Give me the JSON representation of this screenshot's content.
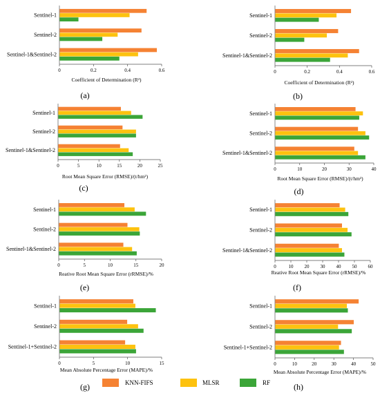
{
  "legend": [
    {
      "label": "KNN-FIFS",
      "color": "#f58233"
    },
    {
      "label": "MLSR",
      "color": "#fdc20f"
    },
    {
      "label": "RF",
      "color": "#3ba538"
    }
  ],
  "chart_data": [
    {
      "id": "a",
      "caption": "(a)",
      "type": "bar",
      "orientation": "horizontal",
      "categories": [
        "Sentinel-1",
        "Sentinel-2",
        "Sentinel-1&Sentinel-2"
      ],
      "series": [
        {
          "name": "KNN-FIFS",
          "values": [
            0.51,
            0.48,
            0.57
          ]
        },
        {
          "name": "MLSR",
          "values": [
            0.41,
            0.34,
            0.46
          ]
        },
        {
          "name": "RF",
          "values": [
            0.11,
            0.25,
            0.35
          ]
        }
      ],
      "xlabel": "Coefficient of Determination (R²)",
      "xlim": [
        0,
        0.6
      ],
      "xticks": [
        "0",
        "0.2",
        "0.4",
        "0.6"
      ],
      "xtick_values": [
        0,
        0.2,
        0.4,
        0.6
      ]
    },
    {
      "id": "b",
      "caption": "(b)",
      "type": "bar",
      "orientation": "horizontal",
      "categories": [
        "Sentinel-1",
        "Sentinel-2",
        "Sentinel-1&Sentinel-2"
      ],
      "series": [
        {
          "name": "KNN-FIFS",
          "values": [
            0.47,
            0.39,
            0.52
          ]
        },
        {
          "name": "MLSR",
          "values": [
            0.38,
            0.32,
            0.45
          ]
        },
        {
          "name": "RF",
          "values": [
            0.27,
            0.18,
            0.34
          ]
        }
      ],
      "xlabel": "Coefficient of Determination (R²)",
      "xlim": [
        0,
        0.6
      ],
      "xticks": [
        "0",
        "0.2",
        "0.4",
        "0.6"
      ],
      "xtick_values": [
        0,
        0.2,
        0.4,
        0.6
      ]
    },
    {
      "id": "c",
      "caption": "(c)",
      "type": "bar",
      "orientation": "horizontal",
      "categories": [
        "Sentinel-1",
        "Sentinel-2",
        "Sentinel-1&Sentinel-2"
      ],
      "series": [
        {
          "name": "KNN-FIFS",
          "values": [
            15.3,
            15.7,
            15.1
          ]
        },
        {
          "name": "MLSR",
          "values": [
            17.8,
            19.0,
            17.2
          ]
        },
        {
          "name": "RF",
          "values": [
            20.6,
            19.0,
            18.2
          ]
        }
      ],
      "xlabel": "Root Mean Square Error (RMSE)/(t/hm²)",
      "xlim": [
        0,
        25
      ],
      "xticks": [
        "0",
        "5",
        "10",
        "15",
        "20",
        "25"
      ],
      "xtick_values": [
        0,
        5,
        10,
        15,
        20,
        25
      ]
    },
    {
      "id": "d",
      "caption": "(d)",
      "type": "bar",
      "orientation": "horizontal",
      "categories": [
        "Sentinel-1",
        "Sentinel-2",
        "Sentinel-1&Sentinel-2"
      ],
      "series": [
        {
          "name": "KNN-FIFS",
          "values": [
            32.5,
            33.5,
            32.0
          ]
        },
        {
          "name": "MLSR",
          "values": [
            35.5,
            36.5,
            33.5
          ]
        },
        {
          "name": "RF",
          "values": [
            34.0,
            38.0,
            36.5
          ]
        }
      ],
      "xlabel": "Root Mean Square Error (RMSE)/(t/hm²)",
      "xlim": [
        0,
        40
      ],
      "xticks": [
        "0",
        "10",
        "20",
        "30",
        "40"
      ],
      "xtick_values": [
        0,
        10,
        20,
        30,
        40
      ]
    },
    {
      "id": "e",
      "caption": "(e)",
      "type": "bar",
      "orientation": "horizontal",
      "categories": [
        "Sentinel-1",
        "Sentinel-2",
        "Sentinel-1&Sentinel-2"
      ],
      "series": [
        {
          "name": "KNN-FIFS",
          "values": [
            12.7,
            13.3,
            12.5
          ]
        },
        {
          "name": "MLSR",
          "values": [
            14.7,
            15.6,
            14.2
          ]
        },
        {
          "name": "RF",
          "values": [
            16.9,
            15.7,
            15.1
          ]
        }
      ],
      "xlabel": "Reative Root Mean Square Error (rRMSE)/%",
      "xlim": [
        0,
        20
      ],
      "xticks": [
        "0",
        "5",
        "10",
        "15",
        "20"
      ],
      "xtick_values": [
        0,
        5,
        10,
        15,
        20
      ]
    },
    {
      "id": "f",
      "caption": "(f)",
      "type": "bar",
      "orientation": "horizontal",
      "categories": [
        "Sentinel-1",
        "Sentinel-2",
        "Sentinel-1&Sentinel-2"
      ],
      "series": [
        {
          "name": "KNN-FIFS",
          "values": [
            40.5,
            42.0,
            40.0
          ]
        },
        {
          "name": "MLSR",
          "values": [
            44.0,
            45.5,
            42.0
          ]
        },
        {
          "name": "RF",
          "values": [
            46.0,
            48.0,
            43.5
          ]
        }
      ],
      "xlabel": "Reative Root Mean Square Error (rRMSE)/%",
      "xlim": [
        0,
        60
      ],
      "xticks": [
        "0",
        "10",
        "20",
        "30",
        "40",
        "50",
        "60"
      ],
      "xtick_values": [
        0,
        10,
        20,
        30,
        40,
        50,
        60
      ]
    },
    {
      "id": "g",
      "caption": "(g)",
      "type": "bar",
      "orientation": "horizontal",
      "categories": [
        "Sentinel-1",
        "Sentinel-2",
        "Sentinel-1+Sentinel-2"
      ],
      "series": [
        {
          "name": "KNN-FIFS",
          "values": [
            10.8,
            9.9,
            9.6
          ]
        },
        {
          "name": "MLSR",
          "values": [
            11.1,
            11.5,
            11.1
          ]
        },
        {
          "name": "RF",
          "values": [
            14.1,
            12.3,
            11.2
          ]
        }
      ],
      "xlabel": "Mean Absolute Percentage Error (MAPE)/%",
      "xlim": [
        0,
        15
      ],
      "xticks": [
        "0",
        "5",
        "10",
        "15"
      ],
      "xtick_values": [
        0,
        5,
        10,
        15
      ]
    },
    {
      "id": "h",
      "caption": "(h)",
      "type": "bar",
      "orientation": "horizontal",
      "categories": [
        "Sentinel-1",
        "Sentinel-2",
        "Sentinel-1+Sentinel-2"
      ],
      "series": [
        {
          "name": "KNN-FIFS",
          "values": [
            42.5,
            40.0,
            33.5
          ]
        },
        {
          "name": "MLSR",
          "values": [
            36.5,
            32.0,
            32.5
          ]
        },
        {
          "name": "RF",
          "values": [
            37.0,
            39.0,
            35.0
          ]
        }
      ],
      "xlabel": "Mean Absolute Percentage Error (MAPE)/%",
      "xlim": [
        0,
        50
      ],
      "xticks": [
        "0",
        "10",
        "20",
        "30",
        "40",
        "50"
      ],
      "xtick_values": [
        0,
        10,
        20,
        30,
        40,
        50
      ]
    }
  ]
}
